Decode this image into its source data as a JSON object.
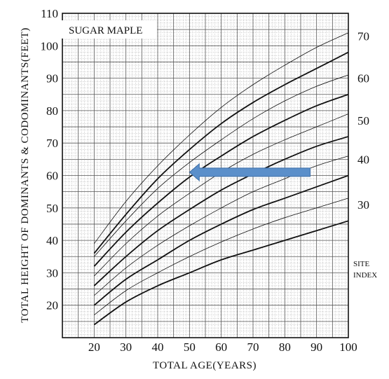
{
  "chart_data": {
    "type": "line",
    "title": "SUGAR MAPLE",
    "xlabel": "TOTAL AGE(YEARS)",
    "ylabel": "TOTAL HEIGHT OF DOMINANTS & CODOMINANTS(FEET)",
    "xlim": [
      10,
      100
    ],
    "ylim": [
      10,
      110
    ],
    "x_ticks": [
      20,
      30,
      40,
      50,
      60,
      70,
      80,
      90,
      100
    ],
    "y_ticks": [
      20,
      30,
      40,
      50,
      60,
      70,
      80,
      90,
      100,
      110
    ],
    "grid": true,
    "site_index_label": [
      "SITE",
      "INDEX"
    ],
    "series": [
      {
        "name": "30",
        "x": [
          20,
          30,
          40,
          50,
          60,
          70,
          80,
          90,
          100
        ],
        "values": [
          14,
          21,
          26,
          30,
          34,
          37,
          40,
          43,
          46
        ],
        "major": true
      },
      {
        "name": "",
        "x": [
          20,
          30,
          40,
          50,
          60,
          70,
          80,
          90,
          100
        ],
        "values": [
          17,
          24.5,
          30,
          35,
          39.5,
          43.5,
          47,
          50,
          53
        ],
        "major": false
      },
      {
        "name": "40",
        "x": [
          20,
          30,
          40,
          50,
          60,
          70,
          80,
          90,
          100
        ],
        "values": [
          20,
          28,
          34,
          40,
          45,
          49.5,
          53,
          56.5,
          60
        ],
        "major": true
      },
      {
        "name": "",
        "x": [
          20,
          30,
          40,
          50,
          60,
          70,
          80,
          90,
          100
        ],
        "values": [
          23,
          31.5,
          38.5,
          44.5,
          50,
          55,
          59,
          63,
          66
        ],
        "major": false
      },
      {
        "name": "50",
        "x": [
          20,
          30,
          40,
          50,
          60,
          70,
          80,
          90,
          100
        ],
        "values": [
          26,
          35,
          43,
          49.5,
          55.5,
          60.5,
          65,
          69,
          72
        ],
        "major": true
      },
      {
        "name": "",
        "x": [
          20,
          30,
          40,
          50,
          60,
          70,
          80,
          90,
          100
        ],
        "values": [
          29,
          39,
          47.5,
          54.5,
          61,
          66.5,
          71,
          75,
          79
        ],
        "major": false
      },
      {
        "name": "60",
        "x": [
          20,
          30,
          40,
          50,
          60,
          70,
          80,
          90,
          100
        ],
        "values": [
          32,
          42.5,
          51.5,
          59.5,
          66,
          72,
          77,
          81.5,
          85
        ],
        "major": true
      },
      {
        "name": "",
        "x": [
          20,
          30,
          40,
          50,
          60,
          70,
          80,
          90,
          100
        ],
        "values": [
          35,
          46,
          56,
          64,
          71,
          77.5,
          83,
          87.5,
          91
        ],
        "major": false
      },
      {
        "name": "70",
        "x": [
          20,
          30,
          40,
          50,
          60,
          70,
          80,
          90,
          100
        ],
        "values": [
          36,
          48,
          59,
          68,
          76,
          82.5,
          88,
          93,
          98
        ],
        "major": true
      },
      {
        "name": "",
        "x": [
          20,
          30,
          40,
          50,
          60,
          70,
          80,
          90,
          100
        ],
        "values": [
          39,
          52,
          63,
          72.5,
          81,
          88,
          94,
          99.5,
          104
        ],
        "major": false
      }
    ],
    "annotations": [
      {
        "type": "arrow",
        "from": {
          "x": 88,
          "y": 61
        },
        "to": {
          "x": 50,
          "y": 61
        },
        "color": "#5b8fca"
      }
    ]
  }
}
